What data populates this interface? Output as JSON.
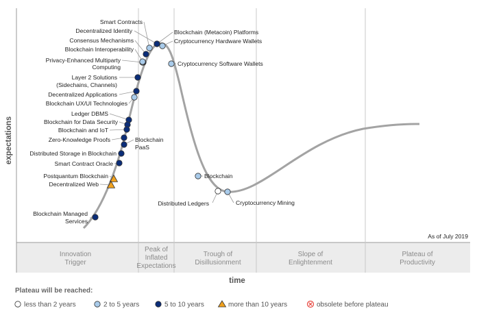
{
  "axes": {
    "y_title": "expectations",
    "x_title": "time"
  },
  "as_of": "As of July 2019",
  "phases": [
    {
      "lines": [
        "Innovation",
        "Trigger"
      ]
    },
    {
      "lines": [
        "Peak of",
        "Inflated",
        "Expectations"
      ]
    },
    {
      "lines": [
        "Trough of",
        "Disillusionment"
      ]
    },
    {
      "lines": [
        "Slope of",
        "Enlightenment"
      ]
    },
    {
      "lines": [
        "Plateau of",
        "Productivity"
      ]
    }
  ],
  "legend": {
    "title": "Plateau will be reached:",
    "items": [
      {
        "key": "lt2",
        "label": "less than 2 years"
      },
      {
        "key": "2to5",
        "label": "2 to 5 years"
      },
      {
        "key": "5to10",
        "label": "5 to 10 years"
      },
      {
        "key": "gt10",
        "label": "more than 10 years"
      },
      {
        "key": "obsolete",
        "label": "obsolete before plateau"
      }
    ]
  },
  "category_colors": {
    "lt2": "#ffffff",
    "2to5": "#a9cbea",
    "5to10": "#0b2d78",
    "gt10": "#f0a11e",
    "obsolete": "#e8473f"
  },
  "technologies": [
    {
      "lines": [
        "Smart Contracts"
      ],
      "category": "2to5"
    },
    {
      "lines": [
        "Decentralized Identity"
      ],
      "category": "5to10"
    },
    {
      "lines": [
        "Consensus Mechanisms"
      ],
      "category": "5to10"
    },
    {
      "lines": [
        "Blockchain Interoperability"
      ],
      "category": "5to10"
    },
    {
      "lines": [
        "Privacy-Enhanced Multiparty",
        "Computing"
      ],
      "category": "2to5"
    },
    {
      "lines": [
        "Layer 2 Solutions",
        "(Sidechains, Channels)"
      ],
      "category": "5to10"
    },
    {
      "lines": [
        "Decentralized Applications"
      ],
      "category": "5to10"
    },
    {
      "lines": [
        "Blockchain UX/UI Technologies"
      ],
      "category": "2to5"
    },
    {
      "lines": [
        "Ledger DBMS"
      ],
      "category": "5to10"
    },
    {
      "lines": [
        "Blockchain for Data Security"
      ],
      "category": "5to10"
    },
    {
      "lines": [
        "Blockchain and IoT"
      ],
      "category": "5to10"
    },
    {
      "lines": [
        "Zero-Knowledge Proofs"
      ],
      "category": "5to10"
    },
    {
      "lines": [
        "Distributed Storage in Blockchain"
      ],
      "category": "5to10"
    },
    {
      "lines": [
        "Smart Contract Oracle"
      ],
      "category": "5to10"
    },
    {
      "lines": [
        "Postquantum Blockchain"
      ],
      "category": "gt10"
    },
    {
      "lines": [
        "Decentralized Web"
      ],
      "category": "gt10"
    },
    {
      "lines": [
        "Blockchain Managed",
        "Services"
      ],
      "category": "5to10"
    },
    {
      "lines": [
        "Blockchain",
        "PaaS"
      ],
      "category": "5to10"
    },
    {
      "lines": [
        "Blockchain (Metacoin) Platforms"
      ],
      "category": "5to10"
    },
    {
      "lines": [
        "Cryptocurrency Hardware Wallets"
      ],
      "category": "2to5"
    },
    {
      "lines": [
        "Cryptocurrency Software Wallets"
      ],
      "category": "2to5"
    },
    {
      "lines": [
        "Blockchain"
      ],
      "category": "2to5"
    },
    {
      "lines": [
        "Distributed Ledgers"
      ],
      "category": "lt2"
    },
    {
      "lines": [
        "Cryptocurrency Mining"
      ],
      "category": "2to5"
    }
  ]
}
